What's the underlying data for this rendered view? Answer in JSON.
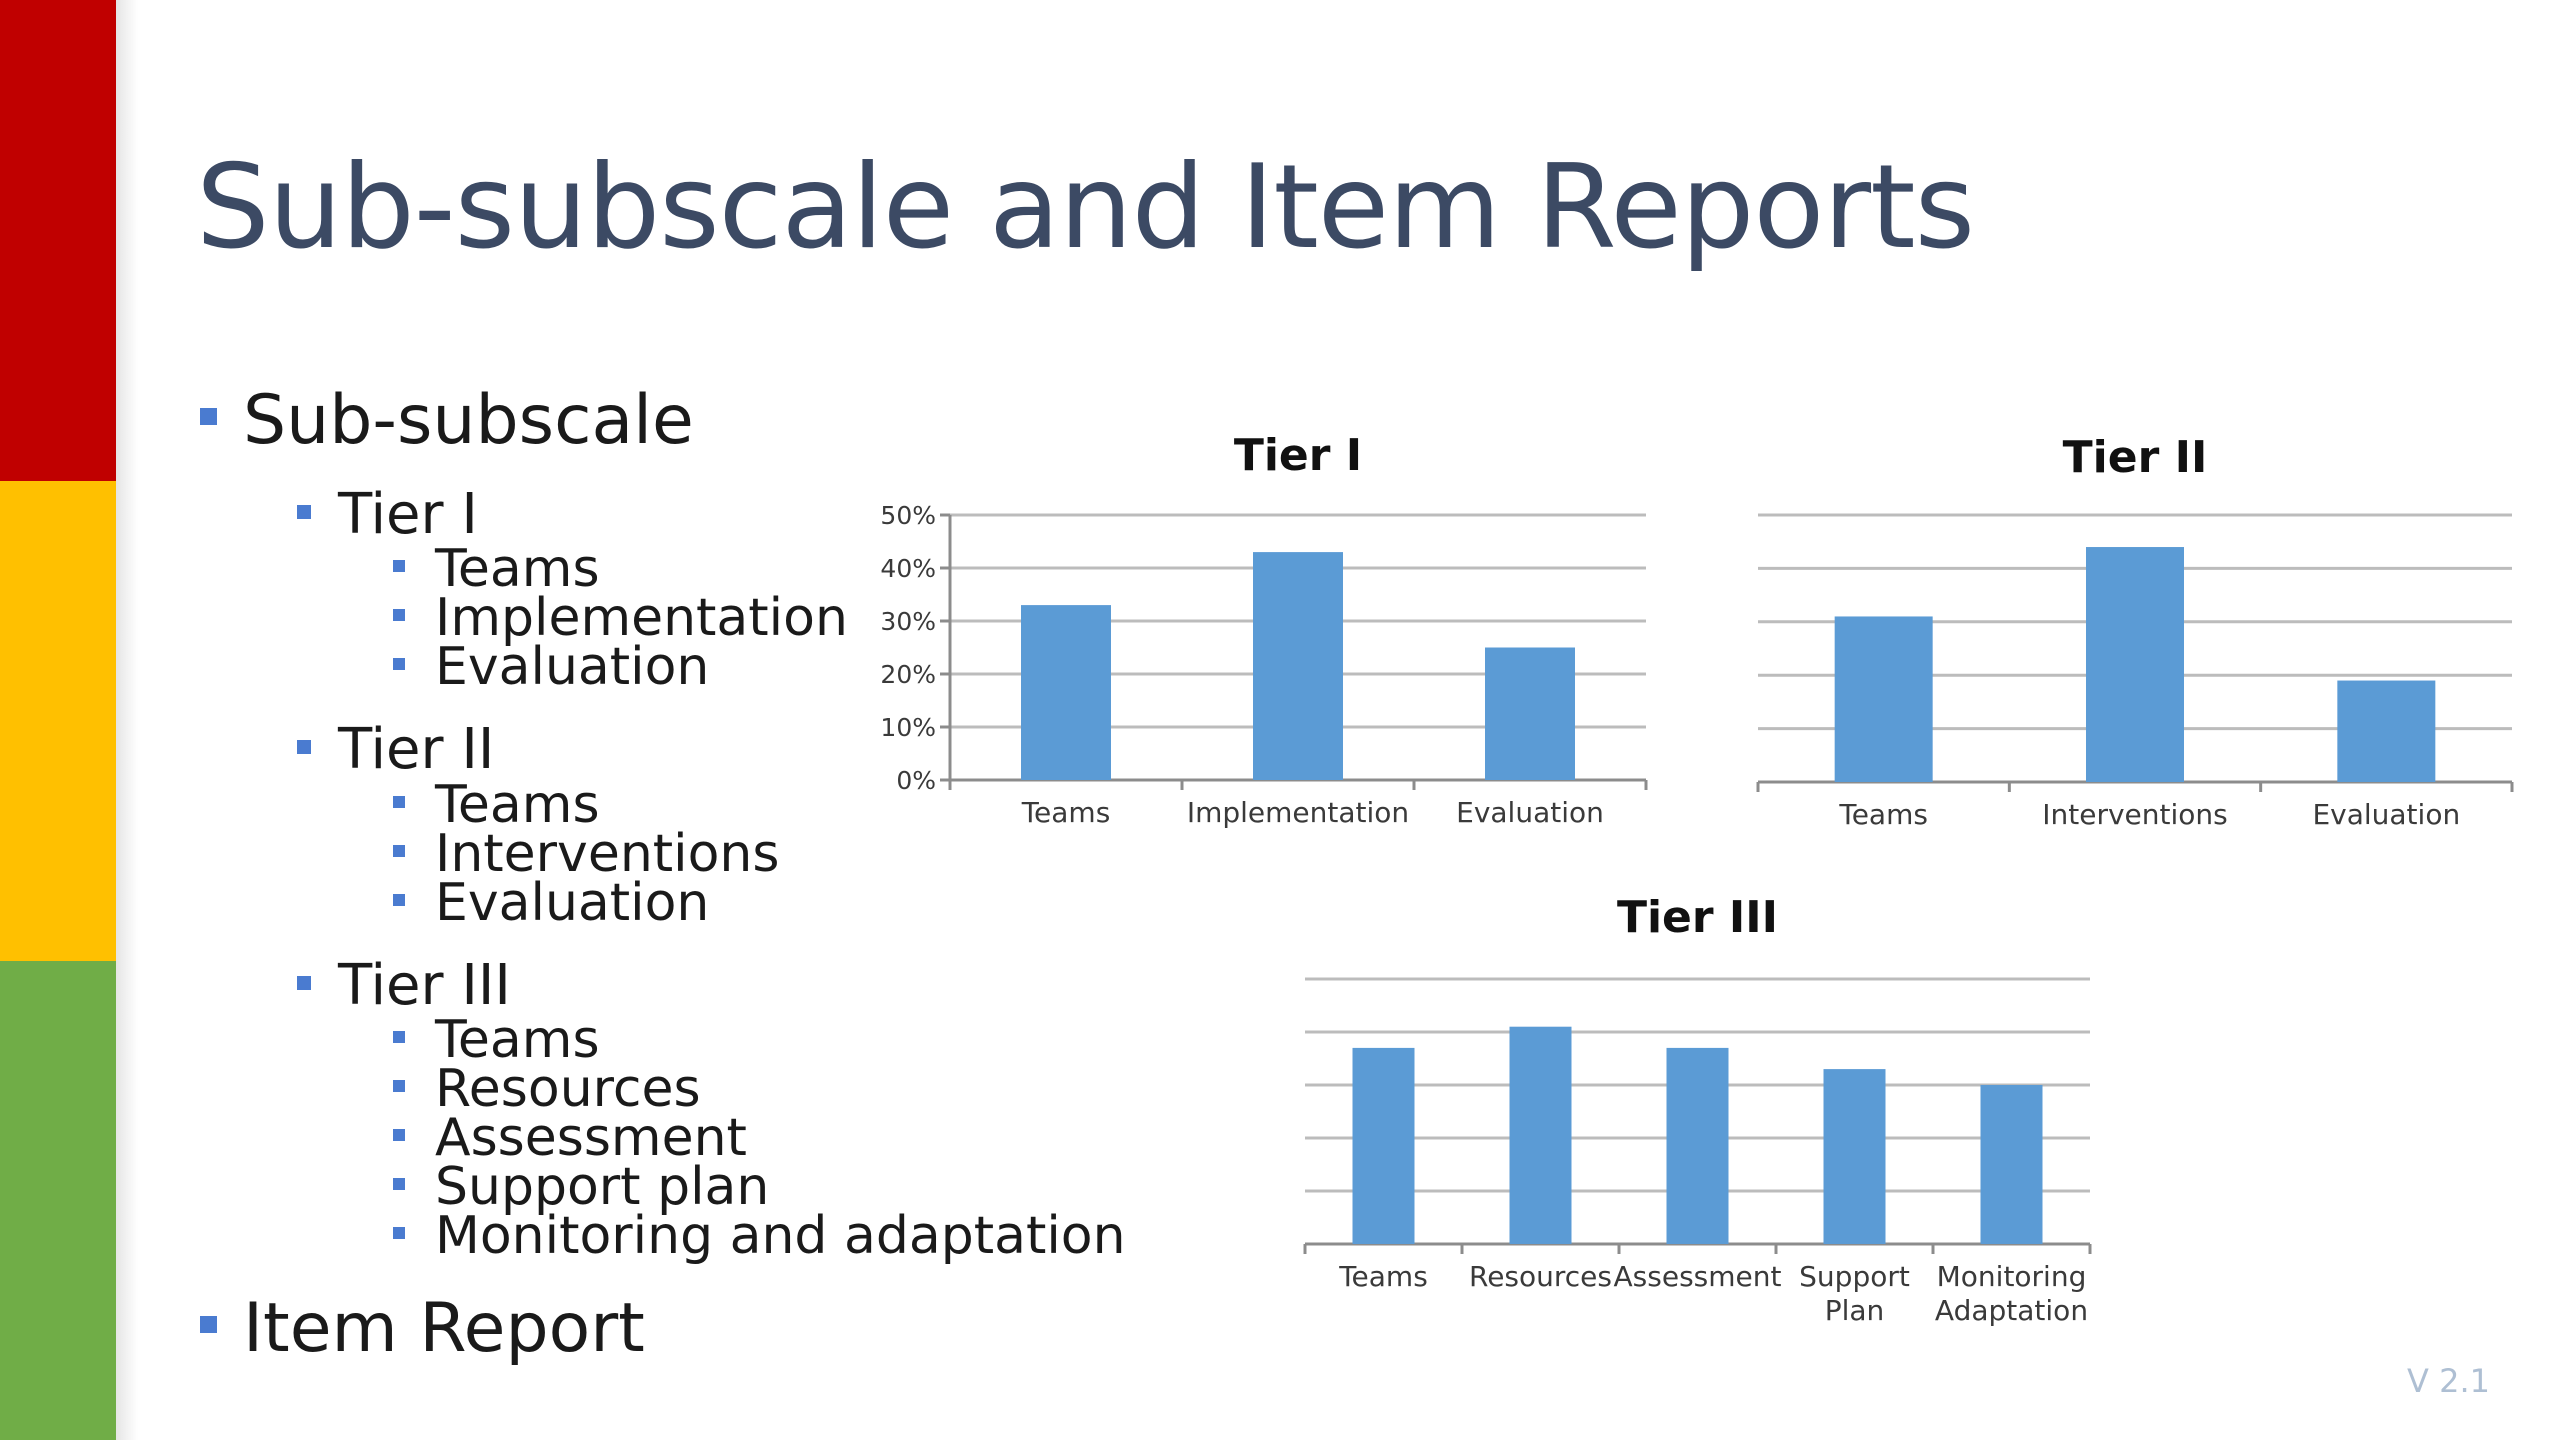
{
  "slide": {
    "title": "Sub-subscale and Item Reports",
    "version": "V 2.1",
    "side_stripe_colors": [
      "#c00000",
      "#ffc000",
      "#70ad47"
    ],
    "accent_color": "#4a7bd0",
    "bar_color": "#5b9bd5"
  },
  "outline": {
    "sub_subscale": "Sub-subscale",
    "tier1": {
      "label": "Tier I",
      "items": [
        "Teams",
        "Implementation",
        "Evaluation"
      ]
    },
    "tier2": {
      "label": "Tier II",
      "items": [
        "Teams",
        "Interventions",
        "Evaluation"
      ]
    },
    "tier3": {
      "label": "Tier III",
      "items": [
        "Teams",
        "Resources",
        "Assessment",
        "Support plan",
        "Monitoring and adaptation"
      ]
    },
    "item_report": "Item Report"
  },
  "chart_data": [
    {
      "type": "bar",
      "title": "Tier I",
      "categories": [
        "Teams",
        "Implementation",
        "Evaluation"
      ],
      "values": [
        33,
        43,
        25
      ],
      "ylim": [
        0,
        50
      ],
      "yticks": [
        "0%",
        "10%",
        "20%",
        "30%",
        "40%",
        "50%"
      ],
      "xlabel": "",
      "ylabel": "",
      "grid": true
    },
    {
      "type": "bar",
      "title": "Tier II",
      "categories": [
        "Teams",
        "Interventions",
        "Evaluation"
      ],
      "values": [
        31,
        44,
        19
      ],
      "ylim": [
        0,
        50
      ],
      "xlabel": "",
      "ylabel": "",
      "grid": true
    },
    {
      "type": "bar",
      "title": "Tier III",
      "categories": [
        "Teams",
        "Resources",
        "Assessment",
        "Support Plan",
        "Monitoring Adaptation"
      ],
      "values": [
        37,
        41,
        37,
        33,
        30
      ],
      "ylim": [
        0,
        50
      ],
      "xlabel": "",
      "ylabel": "",
      "grid": true
    }
  ]
}
